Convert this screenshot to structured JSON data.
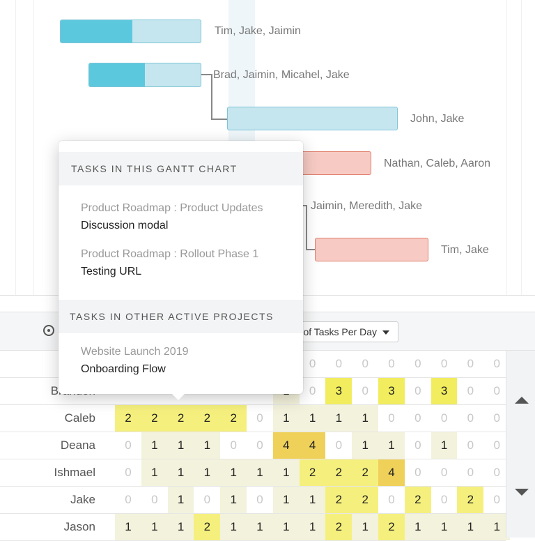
{
  "gantt": {
    "assignees": [
      "Tim, Jake, Jaimin",
      "Brad, Jaimin, Micahel, Jake",
      "John, Jake",
      "Nathan, Caleb, Aaron",
      "Jaimin, Meredith, Jake",
      "Tim, Jake"
    ]
  },
  "popup": {
    "section1_title": "TASKS IN THIS GANTT CHART",
    "section1_items": [
      {
        "project": "Product Roadmap : Product Updates",
        "task": "Discussion modal"
      },
      {
        "project": "Product Roadmap : Rollout Phase 1",
        "task": "Testing URL"
      }
    ],
    "section2_title": "TASKS IN OTHER ACTIVE PROJECTS",
    "section2_items": [
      {
        "project": "Website Launch 2019",
        "task": "Onboarding Flow"
      }
    ]
  },
  "toolbar": {
    "dropdown_label": "of Tasks Per Day",
    "add_icon": "add-circle-icon"
  },
  "workload": {
    "rows": [
      {
        "name": "",
        "values": [
          null,
          null,
          null,
          null,
          null,
          null,
          null,
          0,
          0,
          0,
          0,
          0,
          0,
          0,
          0
        ]
      },
      {
        "name": "Brandon",
        "values": [
          null,
          null,
          null,
          null,
          null,
          null,
          1,
          0,
          3,
          0,
          3,
          0,
          3,
          0,
          0
        ]
      },
      {
        "name": "Caleb",
        "values": [
          2,
          2,
          2,
          2,
          2,
          0,
          1,
          1,
          1,
          1,
          0,
          0,
          0,
          0,
          0
        ]
      },
      {
        "name": "Deana",
        "values": [
          0,
          1,
          1,
          1,
          0,
          0,
          4,
          4,
          0,
          1,
          1,
          0,
          1,
          0,
          0
        ]
      },
      {
        "name": "Ishmael",
        "values": [
          0,
          1,
          1,
          1,
          1,
          1,
          1,
          2,
          2,
          2,
          4,
          0,
          0,
          0,
          0
        ]
      },
      {
        "name": "Jake",
        "values": [
          0,
          0,
          1,
          0,
          1,
          0,
          1,
          1,
          2,
          2,
          0,
          2,
          0,
          2,
          0
        ]
      },
      {
        "name": "Jason",
        "values": [
          1,
          1,
          1,
          2,
          1,
          1,
          1,
          1,
          2,
          1,
          2,
          1,
          1,
          1,
          1
        ]
      }
    ]
  },
  "scroll": {
    "up_icon": "scroll-up-icon",
    "down_icon": "scroll-down-icon"
  },
  "colors": {
    "bar_blue": "#c5e6ef",
    "bar_fill": "#5cc8de",
    "bar_red": "#f7cbc3",
    "level1": "#f3f2dc",
    "level2": "#f5f07e",
    "level3": "#f1ed5e",
    "level4": "#efd15a"
  }
}
